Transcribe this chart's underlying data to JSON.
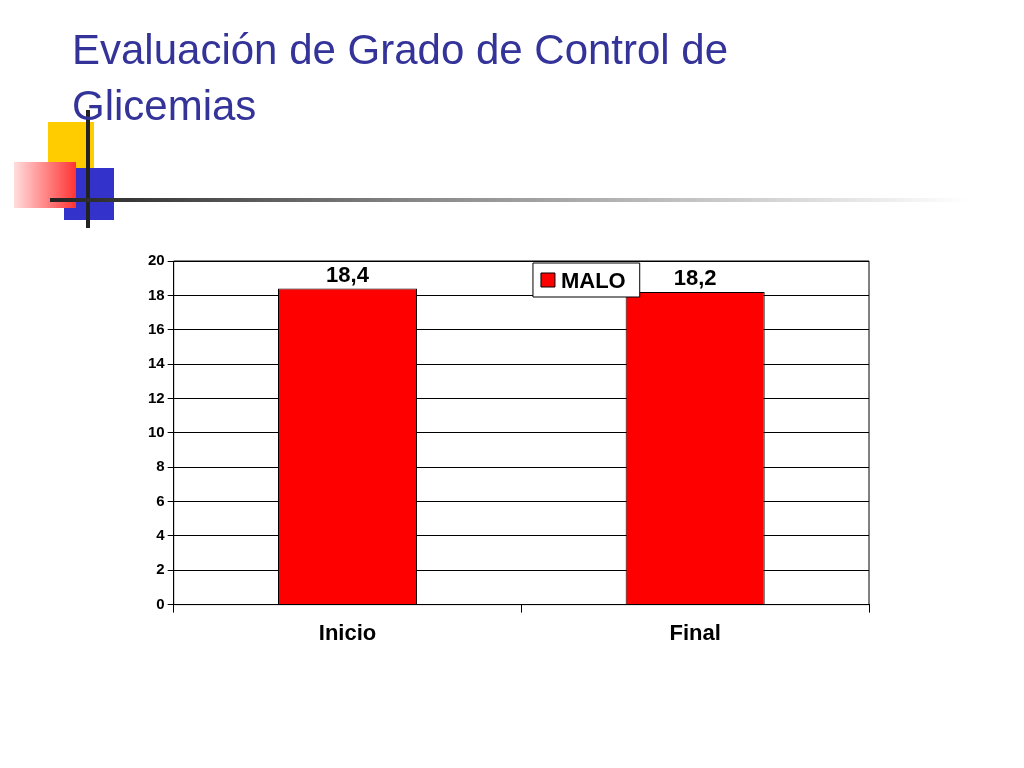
{
  "chart_data": {
    "type": "bar",
    "title": "Evaluación de Grado de Control de Glicemias",
    "categories": [
      "Inicio",
      "Final"
    ],
    "series": [
      {
        "name": "MALO",
        "color": "#ff0000",
        "values": [
          18.4,
          18.2
        ],
        "value_labels": [
          "18,4",
          "18,2"
        ]
      }
    ],
    "ylim": [
      0,
      20
    ],
    "yticks": [
      0,
      2,
      4,
      6,
      8,
      10,
      12,
      14,
      16,
      18,
      20
    ],
    "grid": "y",
    "legend": "top"
  }
}
